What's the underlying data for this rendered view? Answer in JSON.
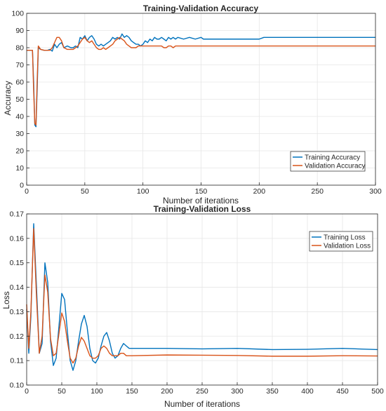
{
  "chart_data": [
    {
      "type": "line",
      "title": "Training-Validation Accuracy",
      "xlabel": "Number of iterations",
      "ylabel": "Accuracy",
      "xlim": [
        0,
        300
      ],
      "ylim": [
        0,
        100
      ],
      "xticks": [
        0,
        50,
        100,
        150,
        200,
        250,
        300
      ],
      "yticks": [
        0,
        10,
        20,
        30,
        40,
        50,
        60,
        70,
        80,
        90,
        100
      ],
      "grid": true,
      "legend_position": "bottom-right",
      "series": [
        {
          "name": "Training Accuracy",
          "color": "#0072BD",
          "x": [
            0,
            5,
            6,
            7,
            8,
            9,
            10,
            12,
            15,
            18,
            20,
            22,
            24,
            26,
            28,
            30,
            32,
            35,
            38,
            40,
            42,
            44,
            46,
            48,
            50,
            52,
            54,
            56,
            58,
            60,
            62,
            64,
            66,
            68,
            70,
            72,
            74,
            76,
            78,
            80,
            82,
            84,
            86,
            88,
            90,
            92,
            94,
            96,
            98,
            100,
            102,
            104,
            106,
            108,
            110,
            112,
            114,
            116,
            118,
            120,
            122,
            124,
            126,
            128,
            130,
            135,
            140,
            145,
            150,
            152,
            154,
            156,
            160,
            180,
            200,
            204,
            206,
            220,
            250,
            280,
            300
          ],
          "y": [
            78.5,
            78.5,
            60,
            35,
            34,
            55,
            80,
            79,
            78.5,
            78.5,
            79,
            78,
            82,
            80,
            82,
            83,
            80,
            81,
            80,
            80,
            81,
            80,
            86,
            85,
            87,
            84,
            86,
            87,
            85,
            82,
            81,
            82,
            81,
            82,
            83,
            84,
            86,
            85,
            86,
            85,
            88,
            86,
            87,
            86,
            84,
            83,
            82,
            82,
            81,
            82,
            84,
            83,
            85,
            84,
            86,
            85,
            85,
            86,
            85,
            84,
            86,
            85,
            86,
            85,
            86,
            85,
            86,
            85,
            86,
            85,
            85,
            85,
            85,
            85,
            85,
            86,
            86,
            86,
            86,
            86,
            86
          ]
        },
        {
          "name": "Validation Accuracy",
          "color": "#D95319",
          "x": [
            0,
            5,
            6,
            7,
            8,
            9,
            10,
            12,
            15,
            18,
            20,
            22,
            24,
            26,
            28,
            30,
            32,
            35,
            38,
            40,
            42,
            44,
            46,
            48,
            50,
            52,
            54,
            56,
            58,
            60,
            62,
            64,
            66,
            68,
            70,
            72,
            74,
            76,
            78,
            80,
            82,
            84,
            86,
            88,
            90,
            92,
            94,
            96,
            98,
            100,
            102,
            104,
            106,
            108,
            110,
            112,
            114,
            116,
            118,
            120,
            122,
            124,
            126,
            128,
            130,
            140,
            150,
            200,
            250,
            300
          ],
          "y": [
            78.5,
            78.5,
            55,
            36,
            35,
            60,
            81,
            79,
            78.5,
            78.5,
            78.5,
            80,
            83,
            86,
            86,
            84,
            80,
            79,
            79,
            79,
            80,
            81,
            83,
            85,
            86,
            84,
            83,
            84,
            82,
            80,
            79,
            79,
            80,
            79,
            80,
            81,
            82,
            84,
            85,
            86,
            85,
            84,
            82,
            81,
            80,
            80,
            80,
            81,
            81,
            81,
            81,
            81,
            81,
            81,
            81,
            81,
            81,
            81,
            80,
            80,
            81,
            81,
            80,
            81,
            81,
            81,
            81,
            81,
            81,
            81
          ]
        }
      ]
    },
    {
      "type": "line",
      "title": "Training-Validation Loss",
      "xlabel": "Number of iterations",
      "ylabel": "Loss",
      "xlim": [
        0,
        500
      ],
      "ylim": [
        0.1,
        0.17
      ],
      "xticks": [
        0,
        50,
        100,
        150,
        200,
        250,
        300,
        350,
        400,
        450,
        500
      ],
      "yticks": [
        0.1,
        0.11,
        0.12,
        0.13,
        0.14,
        0.15,
        0.16,
        0.17
      ],
      "grid": true,
      "legend_position": "top-right",
      "series": [
        {
          "name": "Training Loss",
          "color": "#0072BD",
          "x": [
            0,
            3,
            6,
            10,
            14,
            18,
            22,
            26,
            30,
            34,
            38,
            42,
            46,
            50,
            54,
            58,
            62,
            66,
            70,
            74,
            78,
            82,
            86,
            90,
            94,
            98,
            102,
            106,
            110,
            114,
            118,
            122,
            126,
            130,
            134,
            138,
            142,
            146,
            150,
            200,
            250,
            300,
            350,
            400,
            450,
            500
          ],
          "y": [
            0.131,
            0.113,
            0.128,
            0.166,
            0.14,
            0.113,
            0.117,
            0.15,
            0.142,
            0.118,
            0.108,
            0.111,
            0.124,
            0.1375,
            0.135,
            0.122,
            0.11,
            0.106,
            0.11,
            0.118,
            0.125,
            0.1285,
            0.124,
            0.115,
            0.11,
            0.109,
            0.111,
            0.116,
            0.12,
            0.1215,
            0.118,
            0.113,
            0.111,
            0.112,
            0.115,
            0.117,
            0.116,
            0.115,
            0.115,
            0.115,
            0.1148,
            0.115,
            0.1145,
            0.1146,
            0.115,
            0.1145
          ]
        },
        {
          "name": "Validation Loss",
          "color": "#D95319",
          "x": [
            0,
            3,
            6,
            10,
            14,
            18,
            22,
            26,
            30,
            34,
            38,
            42,
            46,
            50,
            54,
            58,
            62,
            66,
            70,
            74,
            78,
            82,
            86,
            90,
            94,
            98,
            102,
            106,
            110,
            114,
            118,
            122,
            126,
            130,
            134,
            138,
            142,
            146,
            150,
            200,
            250,
            300,
            350,
            400,
            450,
            500
          ],
          "y": [
            0.133,
            0.115,
            0.13,
            0.164,
            0.136,
            0.113,
            0.12,
            0.145,
            0.138,
            0.119,
            0.112,
            0.113,
            0.121,
            0.1295,
            0.126,
            0.118,
            0.111,
            0.109,
            0.111,
            0.116,
            0.1195,
            0.118,
            0.115,
            0.112,
            0.111,
            0.111,
            0.112,
            0.115,
            0.116,
            0.115,
            0.113,
            0.112,
            0.112,
            0.112,
            0.113,
            0.113,
            0.112,
            0.112,
            0.112,
            0.1123,
            0.1122,
            0.1121,
            0.1118,
            0.1118,
            0.112,
            0.1119
          ]
        }
      ]
    }
  ]
}
